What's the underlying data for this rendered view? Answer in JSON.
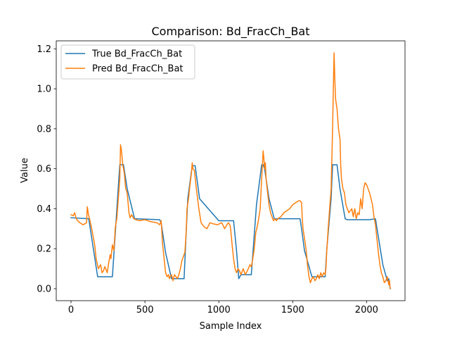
{
  "chart_data": {
    "type": "line",
    "title": "Comparison: Bd_FracCh_Bat",
    "xlabel": "Sample Index",
    "ylabel": "Value",
    "xlim": [
      -100,
      2260
    ],
    "ylim": [
      -0.06,
      1.24
    ],
    "xticks": [
      0,
      500,
      1000,
      1500,
      2000
    ],
    "yticks": [
      0.0,
      0.2,
      0.4,
      0.6,
      0.8,
      1.0,
      1.2
    ],
    "legend_position": "upper left",
    "grid": false,
    "series": [
      {
        "name": "True Bd_FracCh_Bat",
        "color": "#1f77b4",
        "x": [
          0,
          120,
          180,
          240,
          280,
          330,
          355,
          380,
          430,
          600,
          610,
          640,
          680,
          760,
          765,
          790,
          820,
          840,
          870,
          1000,
          1070,
          1100,
          1120,
          1135,
          1150,
          1200,
          1220,
          1255,
          1290,
          1300,
          1310,
          1340,
          1375,
          1430,
          1550,
          1560,
          1580,
          1630,
          1660,
          1680,
          1720,
          1730,
          1760,
          1770,
          1800,
          1820,
          1855,
          1870,
          2020,
          2060,
          2110,
          2140,
          2150,
          2160
        ],
        "y": [
          0.355,
          0.35,
          0.06,
          0.06,
          0.06,
          0.62,
          0.62,
          0.5,
          0.35,
          0.345,
          0.33,
          0.18,
          0.05,
          0.05,
          0.05,
          0.45,
          0.615,
          0.615,
          0.45,
          0.34,
          0.34,
          0.34,
          0.19,
          0.05,
          0.07,
          0.07,
          0.07,
          0.42,
          0.62,
          0.62,
          0.6,
          0.45,
          0.35,
          0.35,
          0.35,
          0.3,
          0.19,
          0.06,
          0.06,
          0.06,
          0.06,
          0.19,
          0.45,
          0.62,
          0.62,
          0.5,
          0.35,
          0.345,
          0.345,
          0.35,
          0.12,
          0.04,
          0.05,
          0.0
        ]
      },
      {
        "name": "Pred Bd_FracCh_Bat",
        "color": "#ff7f0e",
        "x": [
          0,
          15,
          25,
          35,
          45,
          60,
          80,
          95,
          105,
          110,
          118,
          125,
          140,
          160,
          170,
          185,
          200,
          210,
          220,
          228,
          235,
          245,
          255,
          265,
          270,
          280,
          290,
          300,
          310,
          320,
          330,
          335,
          340,
          350,
          360,
          370,
          380,
          392,
          400,
          410,
          425,
          440,
          460,
          500,
          540,
          580,
          600,
          610,
          620,
          630,
          640,
          650,
          660,
          665,
          670,
          680,
          690,
          700,
          710,
          720,
          730,
          740,
          750,
          760,
          770,
          775,
          780,
          785,
          795,
          805,
          815,
          820,
          825,
          835,
          845,
          855,
          865,
          880,
          900,
          920,
          940,
          960,
          990,
          1020,
          1040,
          1055,
          1065,
          1075,
          1080,
          1090,
          1100,
          1110,
          1120,
          1130,
          1140,
          1150,
          1165,
          1180,
          1200,
          1210,
          1220,
          1230,
          1240,
          1250,
          1260,
          1270,
          1280,
          1290,
          1295,
          1300,
          1305,
          1310,
          1315,
          1320,
          1330,
          1340,
          1350,
          1360,
          1370,
          1380,
          1390,
          1400,
          1420,
          1440,
          1460,
          1480,
          1500,
          1520,
          1540,
          1550,
          1560,
          1565,
          1570,
          1580,
          1590,
          1600,
          1610,
          1620,
          1630,
          1640,
          1650,
          1660,
          1670,
          1680,
          1690,
          1700,
          1710,
          1720,
          1725,
          1730,
          1740,
          1750,
          1760,
          1765,
          1770,
          1775,
          1780,
          1785,
          1790,
          1800,
          1810,
          1820,
          1825,
          1830,
          1840,
          1850,
          1860,
          1870,
          1880,
          1890,
          1900,
          1910,
          1920,
          1930,
          1940,
          1950,
          1960,
          1970,
          1980,
          1990,
          2000,
          2010,
          2020,
          2030,
          2040,
          2050,
          2060,
          2070,
          2080,
          2090,
          2100,
          2110,
          2120,
          2130,
          2140,
          2150,
          2155,
          2160
        ],
        "y": [
          0.37,
          0.365,
          0.38,
          0.35,
          0.34,
          0.33,
          0.32,
          0.325,
          0.33,
          0.41,
          0.37,
          0.35,
          0.3,
          0.22,
          0.15,
          0.1,
          0.12,
          0.08,
          0.09,
          0.11,
          0.1,
          0.08,
          0.13,
          0.17,
          0.15,
          0.22,
          0.19,
          0.31,
          0.35,
          0.45,
          0.55,
          0.72,
          0.7,
          0.62,
          0.58,
          0.5,
          0.48,
          0.38,
          0.355,
          0.37,
          0.35,
          0.345,
          0.34,
          0.345,
          0.335,
          0.33,
          0.32,
          0.34,
          0.22,
          0.15,
          0.08,
          0.06,
          0.07,
          0.05,
          0.06,
          0.07,
          0.04,
          0.07,
          0.06,
          0.05,
          0.07,
          0.1,
          0.14,
          0.16,
          0.18,
          0.23,
          0.3,
          0.4,
          0.45,
          0.52,
          0.58,
          0.63,
          0.6,
          0.59,
          0.52,
          0.46,
          0.4,
          0.33,
          0.31,
          0.3,
          0.33,
          0.325,
          0.32,
          0.33,
          0.3,
          0.32,
          0.33,
          0.32,
          0.3,
          0.22,
          0.15,
          0.1,
          0.08,
          0.1,
          0.09,
          0.07,
          0.1,
          0.07,
          0.1,
          0.12,
          0.11,
          0.15,
          0.2,
          0.28,
          0.31,
          0.35,
          0.4,
          0.55,
          0.62,
          0.69,
          0.65,
          0.6,
          0.63,
          0.55,
          0.48,
          0.42,
          0.38,
          0.36,
          0.34,
          0.35,
          0.34,
          0.35,
          0.36,
          0.38,
          0.39,
          0.4,
          0.42,
          0.43,
          0.44,
          0.44,
          0.43,
          0.35,
          0.3,
          0.25,
          0.2,
          0.12,
          0.06,
          0.03,
          0.05,
          0.06,
          0.04,
          0.05,
          0.07,
          0.05,
          0.08,
          0.06,
          0.08,
          0.07,
          0.1,
          0.18,
          0.3,
          0.4,
          0.5,
          0.65,
          0.8,
          1.0,
          1.18,
          1.05,
          0.95,
          0.9,
          0.8,
          0.75,
          0.62,
          0.55,
          0.5,
          0.48,
          0.42,
          0.4,
          0.38,
          0.39,
          0.4,
          0.36,
          0.4,
          0.35,
          0.38,
          0.37,
          0.45,
          0.4,
          0.5,
          0.53,
          0.52,
          0.5,
          0.48,
          0.45,
          0.42,
          0.36,
          0.32,
          0.25,
          0.18,
          0.12,
          0.08,
          0.06,
          0.03,
          0.04,
          0.06,
          0.02,
          0.04,
          0.0
        ]
      }
    ]
  }
}
